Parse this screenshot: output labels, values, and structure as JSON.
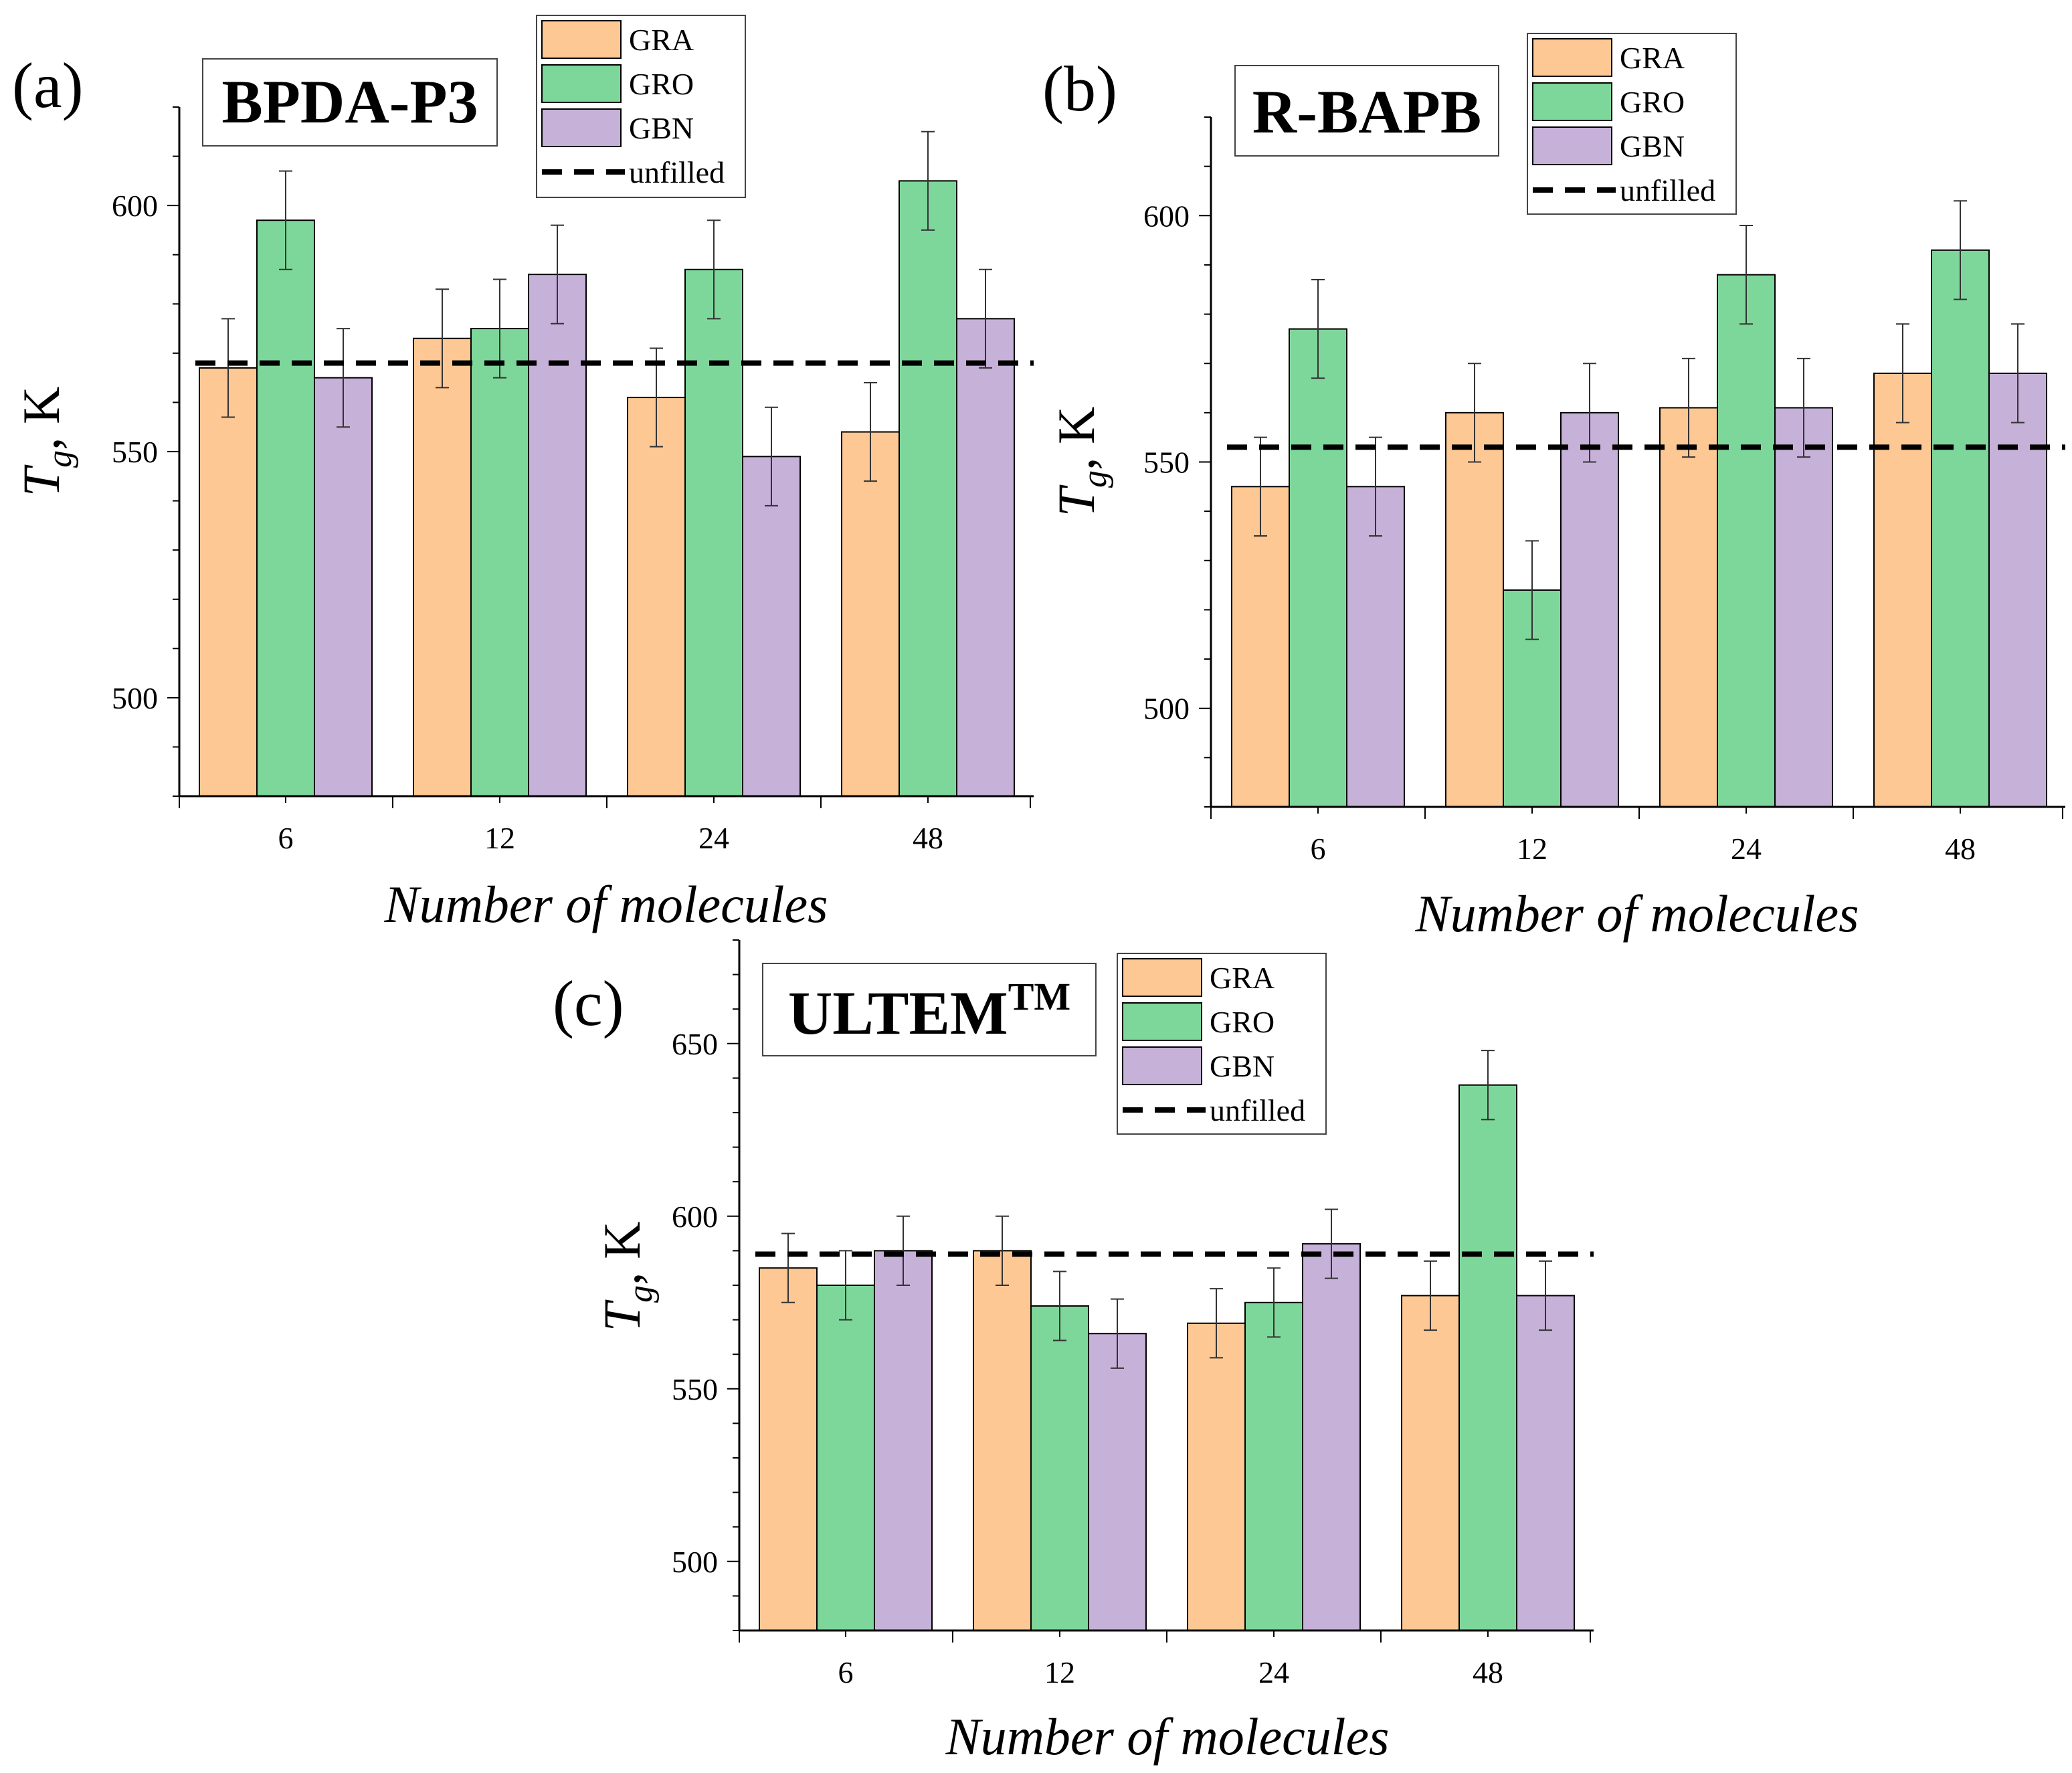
{
  "chart_data": [
    {
      "type": "bar",
      "panel": "(a)",
      "title": "BPDA-P3",
      "categories": [
        "6",
        "12",
        "24",
        "48"
      ],
      "series": [
        {
          "name": "GRA",
          "values": [
            567,
            573,
            561,
            554
          ],
          "errors": [
            10,
            10,
            10,
            10
          ],
          "color": "#FDC893"
        },
        {
          "name": "GRO",
          "values": [
            597,
            575,
            587,
            605
          ],
          "errors": [
            10,
            10,
            10,
            10
          ],
          "color": "#7ED79A"
        },
        {
          "name": "GBN",
          "values": [
            565,
            586,
            549,
            577
          ],
          "errors": [
            10,
            10,
            10,
            10
          ],
          "color": "#C6B1D8"
        }
      ],
      "reference_line": {
        "name": "unfilled",
        "value": 568
      },
      "xlabel": "Number of molecules",
      "ylabel_symbol": "T",
      "ylabel_subscript": "g",
      "ylabel_unit": ", K",
      "ylim": [
        480,
        620
      ],
      "yticks": [
        500,
        550,
        600
      ]
    },
    {
      "type": "bar",
      "panel": "(b)",
      "title": "R-BAPB",
      "categories": [
        "6",
        "12",
        "24",
        "48"
      ],
      "series": [
        {
          "name": "GRA",
          "values": [
            545,
            560,
            561,
            568
          ],
          "errors": [
            10,
            10,
            10,
            10
          ],
          "color": "#FDC893"
        },
        {
          "name": "GRO",
          "values": [
            577,
            524,
            588,
            593
          ],
          "errors": [
            10,
            10,
            10,
            10
          ],
          "color": "#7ED79A"
        },
        {
          "name": "GBN",
          "values": [
            545,
            560,
            561,
            568
          ],
          "errors": [
            10,
            10,
            10,
            10
          ],
          "color": "#C6B1D8"
        }
      ],
      "reference_line": {
        "name": "unfilled",
        "value": 553
      },
      "xlabel": "Number of molecules",
      "ylabel_symbol": "T",
      "ylabel_subscript": "g",
      "ylabel_unit": ", K",
      "ylim": [
        480,
        620
      ],
      "yticks": [
        500,
        550,
        600
      ]
    },
    {
      "type": "bar",
      "panel": "(c)",
      "title": "ULTEM",
      "title_superscript": "TM",
      "categories": [
        "6",
        "12",
        "24",
        "48"
      ],
      "series": [
        {
          "name": "GRA",
          "values": [
            585,
            590,
            569,
            577
          ],
          "errors": [
            10,
            10,
            10,
            10
          ],
          "color": "#FDC893"
        },
        {
          "name": "GRO",
          "values": [
            580,
            574,
            575,
            638
          ],
          "errors": [
            10,
            10,
            10,
            10
          ],
          "color": "#7ED79A"
        },
        {
          "name": "GBN",
          "values": [
            590,
            566,
            592,
            577
          ],
          "errors": [
            10,
            10,
            10,
            10
          ],
          "color": "#C6B1D8"
        }
      ],
      "reference_line": {
        "name": "unfilled",
        "value": 589
      },
      "xlabel": "Number of molecules",
      "ylabel_symbol": "T",
      "ylabel_subscript": "g",
      "ylabel_unit": ", K",
      "ylim": [
        480,
        680
      ],
      "yticks": [
        500,
        550,
        600,
        650
      ]
    }
  ]
}
